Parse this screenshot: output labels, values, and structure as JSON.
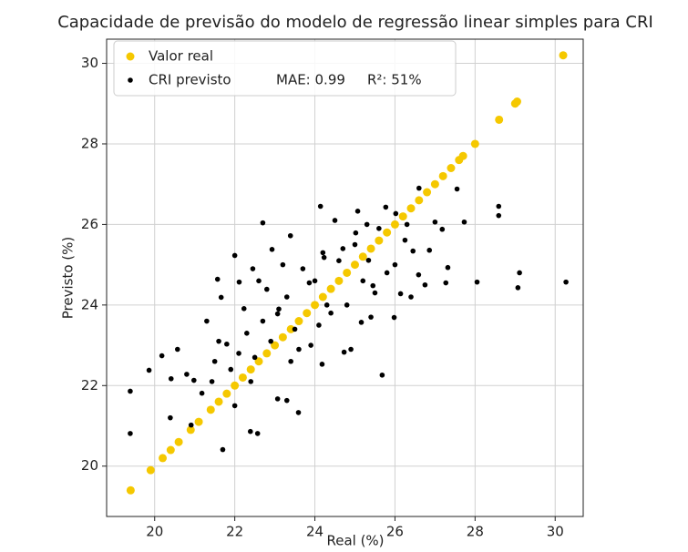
{
  "chart_data": {
    "type": "scatter",
    "title": "Capacidade de previsão do modelo de regressão linear simples para CRI",
    "xlabel": "Real (%)",
    "ylabel": "Previsto (%)",
    "annotations": [
      "MAE: 0.99",
      "R²: 51%"
    ],
    "xlim": [
      18.8,
      30.7
    ],
    "ylim": [
      18.75,
      30.6
    ],
    "xticks": [
      20,
      22,
      24,
      26,
      28,
      30
    ],
    "yticks": [
      20,
      22,
      24,
      26,
      28,
      30
    ],
    "grid": true,
    "legend": "upper left",
    "series": [
      {
        "name": "Valor real",
        "color": "#f5c800",
        "x": [
          19.4,
          19.9,
          20.2,
          20.4,
          20.6,
          20.9,
          21.1,
          21.4,
          21.6,
          21.8,
          22.0,
          22.2,
          22.4,
          22.6,
          22.8,
          23.0,
          23.2,
          23.4,
          23.6,
          23.8,
          24.0,
          24.2,
          24.4,
          24.6,
          24.8,
          25.0,
          25.2,
          25.4,
          25.6,
          25.8,
          26.0,
          26.2,
          26.4,
          26.6,
          26.8,
          27.0,
          27.2,
          27.4,
          27.6,
          27.7,
          28.0,
          28.6,
          29.0,
          29.05,
          30.2
        ],
        "values": [
          19.4,
          19.9,
          20.2,
          20.4,
          20.6,
          20.9,
          21.1,
          21.4,
          21.6,
          21.8,
          22.0,
          22.2,
          22.4,
          22.6,
          22.8,
          23.0,
          23.2,
          23.4,
          23.6,
          23.8,
          24.0,
          24.2,
          24.4,
          24.6,
          24.8,
          25.0,
          25.2,
          25.4,
          25.6,
          25.8,
          26.0,
          26.2,
          26.4,
          26.6,
          26.8,
          27.0,
          27.2,
          27.4,
          27.6,
          27.7,
          28.0,
          28.6,
          29.0,
          29.05,
          30.2
        ]
      },
      {
        "name": "CRI previsto",
        "color": "#000000",
        "x": [
          19.39,
          19.39,
          19.86,
          20.18,
          20.39,
          20.41,
          20.57,
          20.8,
          20.91,
          20.98,
          21.18,
          21.43,
          21.57,
          21.66,
          21.7,
          21.8,
          22.0,
          22.11,
          22.23,
          22.39,
          22.57,
          22.7,
          22.45,
          22.8,
          22.93,
          23.07,
          23.07,
          23.3,
          23.39,
          23.59,
          23.86,
          24.14,
          24.18,
          24.23,
          24.5,
          24.73,
          25.02,
          25.07,
          25.16,
          25.34,
          25.45,
          25.68,
          25.77,
          25.98,
          26.02,
          26.14,
          26.25,
          26.45,
          26.59,
          26.75,
          26.86,
          27.0,
          27.18,
          27.27,
          27.32,
          27.55,
          27.73,
          28.05,
          28.59,
          28.59,
          29.07,
          29.11,
          30.27,
          22.1,
          22.3,
          22.5,
          22.7,
          22.9,
          23.1,
          23.3,
          23.5,
          23.7,
          23.9,
          24.0,
          24.2,
          24.4,
          24.6,
          24.8,
          25.0,
          25.2,
          25.4,
          25.6,
          25.8,
          26.0,
          26.3,
          26.6,
          24.3,
          24.7,
          23.6,
          21.9,
          21.5,
          21.3,
          22.0,
          22.6,
          23.2,
          24.9,
          25.3,
          21.6,
          24.1,
          23.4,
          25.5,
          26.4,
          22.4
        ],
        "values": [
          21.86,
          20.81,
          22.38,
          22.74,
          21.2,
          22.17,
          22.9,
          22.28,
          21.02,
          22.13,
          21.81,
          22.1,
          24.64,
          24.19,
          20.41,
          23.03,
          25.23,
          24.57,
          23.91,
          20.86,
          20.81,
          26.04,
          24.9,
          24.39,
          25.38,
          23.78,
          21.67,
          21.63,
          25.72,
          21.33,
          24.55,
          26.45,
          22.53,
          25.18,
          26.1,
          22.83,
          25.79,
          26.33,
          23.57,
          25.11,
          24.48,
          22.26,
          26.43,
          23.69,
          26.27,
          24.28,
          25.61,
          25.34,
          24.75,
          24.5,
          25.36,
          26.06,
          25.88,
          24.55,
          24.93,
          26.88,
          26.06,
          24.57,
          26.45,
          26.22,
          24.43,
          24.8,
          24.57,
          22.8,
          23.3,
          22.7,
          23.6,
          23.1,
          23.9,
          24.2,
          23.4,
          24.9,
          23.0,
          24.6,
          25.3,
          23.8,
          25.1,
          24.0,
          25.5,
          24.6,
          23.7,
          25.9,
          24.8,
          25.0,
          26.0,
          26.9,
          24.0,
          25.4,
          22.9,
          22.4,
          22.6,
          23.6,
          21.5,
          24.6,
          25.0,
          22.9,
          26.0,
          23.1,
          23.5,
          22.6,
          24.3,
          24.2,
          22.1
        ]
      }
    ]
  }
}
